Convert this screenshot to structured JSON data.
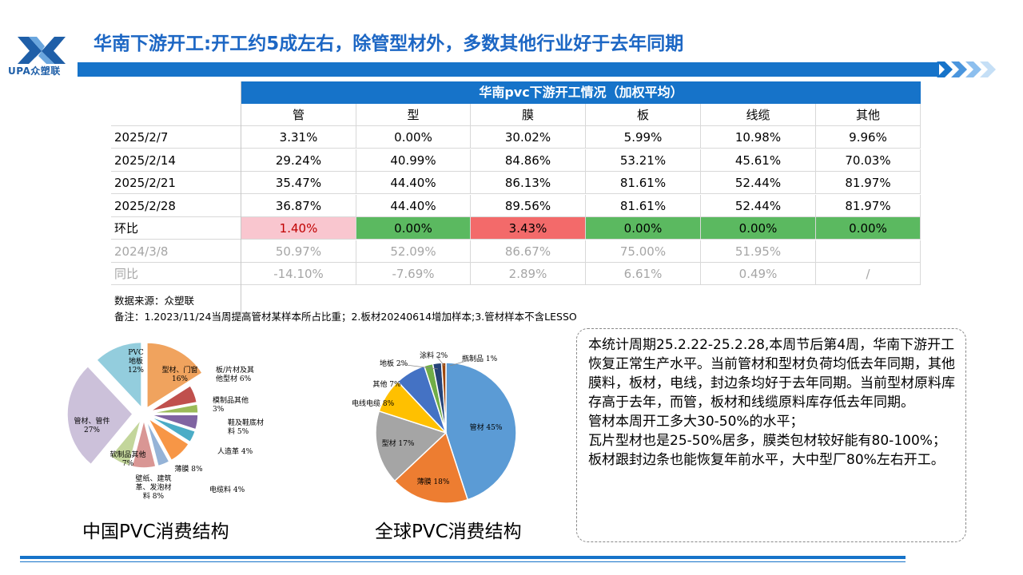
{
  "logo": {
    "text": "UPA众塑联"
  },
  "title": "华南下游开工:开工约5成左右，除管型材外，多数其他行业好于去年同期",
  "table": {
    "header": "华南pvc下游开工情况（加权平均）",
    "columns": [
      "管",
      "型",
      "膜",
      "板",
      "线缆",
      "其他"
    ],
    "rows": [
      {
        "label": "2025/2/7",
        "values": [
          "3.31%",
          "0.00%",
          "30.02%",
          "5.99%",
          "10.98%",
          "9.96%"
        ]
      },
      {
        "label": "2025/2/14",
        "values": [
          "29.24%",
          "40.99%",
          "84.86%",
          "53.21%",
          "45.61%",
          "70.03%"
        ]
      },
      {
        "label": "2025/2/21",
        "values": [
          "35.47%",
          "44.40%",
          "86.13%",
          "81.61%",
          "52.44%",
          "81.97%"
        ]
      },
      {
        "label": "2025/2/28",
        "values": [
          "36.87%",
          "44.40%",
          "89.56%",
          "81.61%",
          "52.44%",
          "81.97%"
        ]
      },
      {
        "label": "环比",
        "values": [
          "1.40%",
          "0.00%",
          "3.43%",
          "0.00%",
          "0.00%",
          "0.00%"
        ],
        "cell_colors": [
          "#f9c6cf",
          "#5bb960",
          "#f36a6a",
          "#5bb960",
          "#5bb960",
          "#5bb960"
        ]
      },
      {
        "label": "2024/3/8",
        "values": [
          "50.97%",
          "52.09%",
          "86.67%",
          "75.00%",
          "51.95%",
          ""
        ]
      },
      {
        "label": "同比",
        "values": [
          "-14.10%",
          "-7.69%",
          "2.89%",
          "6.61%",
          "0.49%",
          "/"
        ]
      }
    ],
    "source": "数据来源：众塑联",
    "remark": "备注：1.2023/11/24当周提高管材某样本所占比重；2.板材20240614增加样本;3.管材样本不含LESSO"
  },
  "china_pie": {
    "caption": "中国PVC消费结构",
    "slices": [
      {
        "lines": [
          "型材、门窗",
          "16%"
        ],
        "value": 16,
        "color": "#f0a35e"
      },
      {
        "lines": [
          "板/片材及其",
          "他型材 6%"
        ],
        "value": 6,
        "color": "#c0504d"
      },
      {
        "lines": [
          "模制品其他",
          "3%"
        ],
        "value": 3,
        "color": "#9bbb59"
      },
      {
        "lines": [
          "鞋及鞋底材",
          "料 5%"
        ],
        "value": 5,
        "color": "#8064a2"
      },
      {
        "lines": [
          "人造革 4%"
        ],
        "value": 4,
        "color": "#4bacc6"
      },
      {
        "lines": [
          "薄膜 8%"
        ],
        "value": 8,
        "color": "#f79646"
      },
      {
        "lines": [
          "电缆料 4%"
        ],
        "value": 4,
        "color": "#95b3d7"
      },
      {
        "lines": [
          "壁纸、建筑",
          "革、发泡材",
          "料 8%"
        ],
        "value": 8,
        "color": "#d99694"
      },
      {
        "lines": [
          "软制品其他",
          "7%"
        ],
        "value": 7,
        "color": "#c3d69b"
      },
      {
        "lines": [
          "管材、管件",
          "27%"
        ],
        "value": 27,
        "color": "#ccc1da"
      },
      {
        "lines": [
          "PVC",
          "地板",
          "12%"
        ],
        "value": 12,
        "color": "#93cddd"
      }
    ]
  },
  "global_pie": {
    "caption": "全球PVC消费结构",
    "slices": [
      {
        "label": "管材 45%",
        "value": 45,
        "color": "#5b9bd5"
      },
      {
        "label": "薄膜 18%",
        "value": 18,
        "color": "#ed7d31"
      },
      {
        "label": "型材 17%",
        "value": 17,
        "color": "#a5a5a5"
      },
      {
        "label": "电线电缆 8%",
        "value": 8,
        "color": "#ffc000"
      },
      {
        "label": "其他 7%",
        "value": 7,
        "color": "#4472c4"
      },
      {
        "label": "地板 2%",
        "value": 2,
        "color": "#70ad47"
      },
      {
        "label": "涂料 2%",
        "value": 2,
        "color": "#264478"
      },
      {
        "label": "瓶制品 1%",
        "value": 1,
        "color": "#9e480e"
      }
    ]
  },
  "summary": {
    "lines": [
      "本统计周期25.2.22-25.2.28,本周节后第4周，华南下游开工恢复正常生产水平。当前管材和型材负荷均低去年同期，其他膜料，板材，电线，封边条均好于去年同期。当前型材原料库存高于去年，而管，板材和线缆原料库存低去年同期。",
      "管材本周开工多大30-50%的水平；",
      "瓦片型材也是25-50%居多，膜类包材较好能有80-100%；",
      "板材跟封边条也能恢复年前水平，大中型厂80%左右开工。"
    ]
  }
}
